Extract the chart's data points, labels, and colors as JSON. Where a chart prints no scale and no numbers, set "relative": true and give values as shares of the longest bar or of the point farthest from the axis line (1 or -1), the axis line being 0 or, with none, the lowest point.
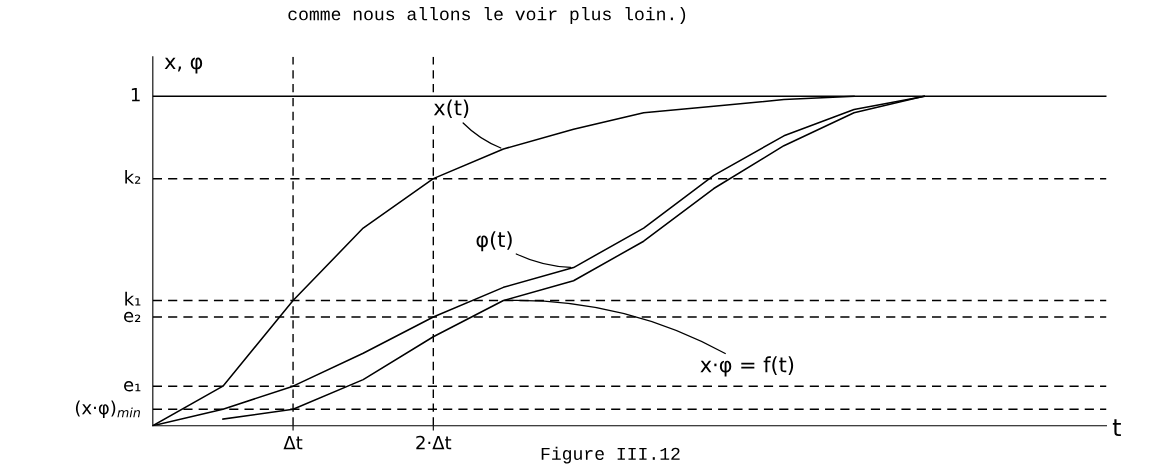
{
  "chart_data": {
    "type": "line",
    "relative": true,
    "ylabel": "x, φ",
    "categories": [
      null,
      null,
      "Δt",
      null,
      "2·Δt",
      null,
      null,
      null,
      null,
      null,
      null,
      null
    ],
    "grid": "x",
    "marker": "none",
    "line_style": "solid",
    "series": [
      {
        "color": "#000000",
        "values": [
          0,
          0.12,
          0.38,
          0.6,
          0.75,
          0.84,
          0.9,
          0.95,
          0.97,
          0.99,
          1.0,
          null
        ]
      },
      {
        "color": "#000000",
        "values": [
          0,
          0.05,
          0.12,
          0.22,
          0.33,
          0.42,
          0.48,
          0.6,
          0.76,
          0.88,
          0.96,
          1.0
        ]
      },
      {
        "color": "#000000",
        "values": [
          null,
          0.02,
          0.05,
          0.14,
          0.27,
          0.38,
          0.44,
          0.56,
          0.72,
          0.85,
          0.95,
          1.0
        ]
      }
    ],
    "ref_lines": [
      {
        "axis": "y",
        "value": 1,
        "label": "1",
        "line_style": "solid",
        "color": "#000000"
      },
      {
        "axis": "y",
        "value": 0.75,
        "label": "k₂",
        "line_style": "dashed",
        "color": "#000000"
      },
      {
        "axis": "y",
        "value": 0.38,
        "label": "k₁",
        "line_style": "dashed",
        "color": "#000000"
      },
      {
        "axis": "y",
        "value": 0.33,
        "label": "e₂",
        "line_style": "dashed",
        "color": "#000000"
      },
      {
        "axis": "y",
        "value": 0.12,
        "label": "e₁",
        "line_style": "dashed",
        "color": "#000000"
      },
      {
        "axis": "y",
        "value": 0.05,
        "label": "(x·φ)$_{min}$",
        "line_style": "dashed",
        "color": "#000000"
      }
    ],
    "annotations": [
      "comme nous allons le voir plus loin.)",
      "Figure III.12",
      "x(t)",
      "φ(t)",
      "x·φ = f(t)",
      "t"
    ]
  }
}
